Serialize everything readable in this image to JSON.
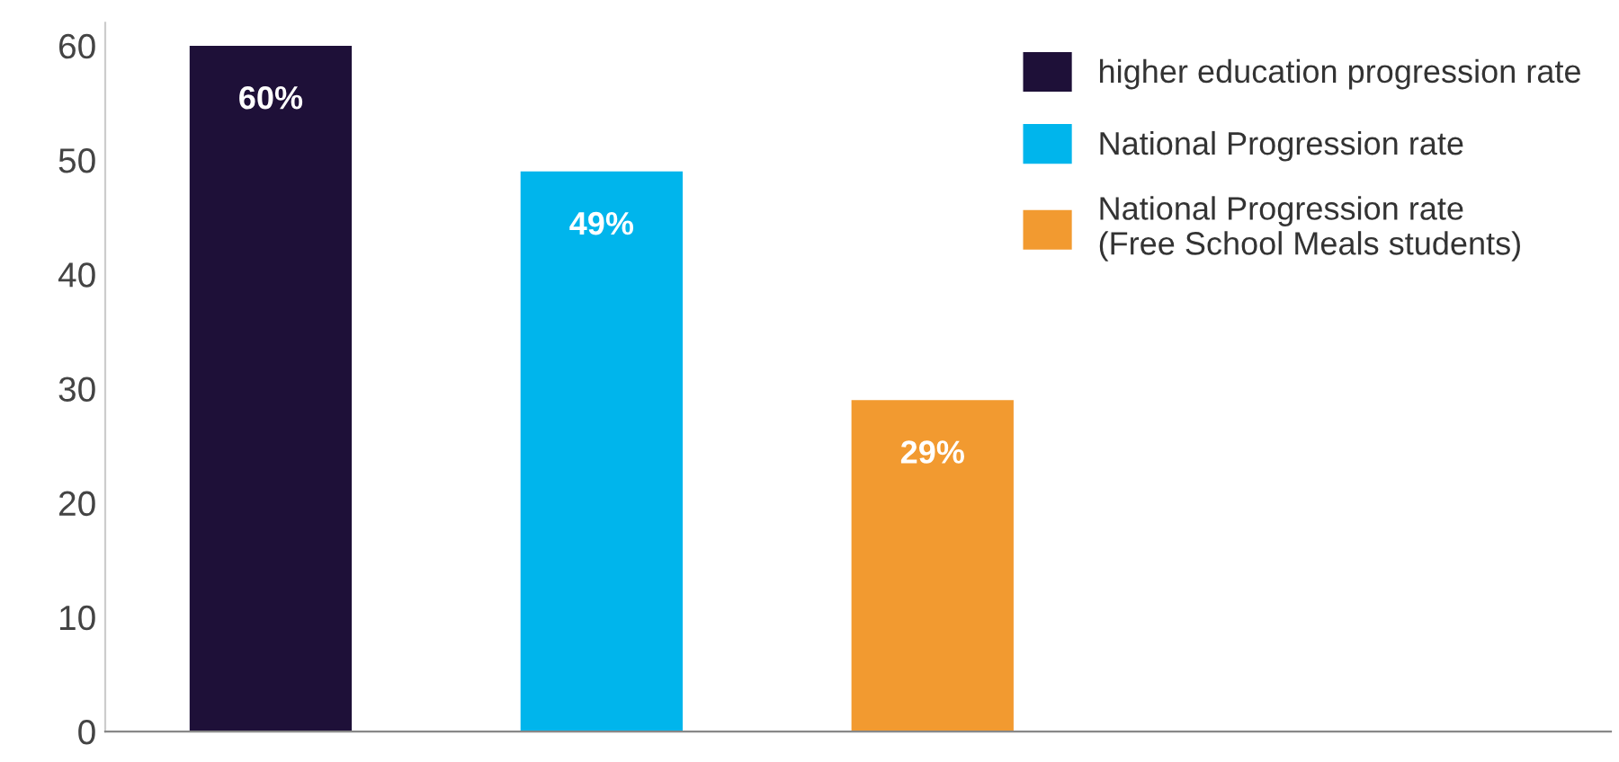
{
  "chart_data": {
    "type": "bar",
    "categories": [
      null,
      null,
      null
    ],
    "series": [
      {
        "name": "higher education progression rate",
        "color": "#1e1038",
        "values": [
          60,
          null,
          null
        ],
        "value_labels": [
          "60%",
          null,
          null
        ]
      },
      {
        "name": "National Progression rate",
        "color": "#00b5ec",
        "values": [
          null,
          49,
          null
        ],
        "value_labels": [
          null,
          "49%",
          null
        ]
      },
      {
        "name": "National Progression rate\n(Free School Meals students)",
        "color": "#f29a30",
        "values": [
          null,
          null,
          29
        ],
        "value_labels": [
          null,
          null,
          "29%"
        ]
      }
    ],
    "stacked": true,
    "ylim": [
      0,
      62
    ],
    "yticks": [
      0,
      10,
      20,
      30,
      40,
      50,
      60
    ],
    "grid": false,
    "legend": "top right"
  }
}
